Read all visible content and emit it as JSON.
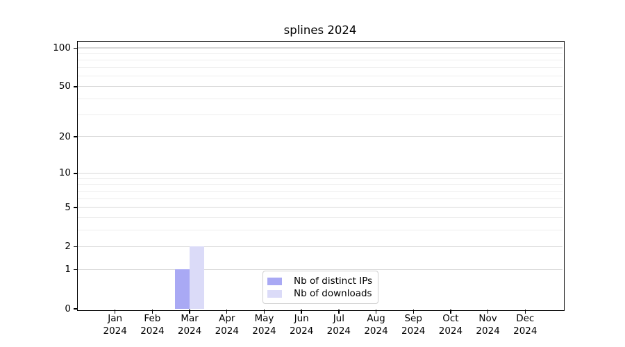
{
  "chart_data": {
    "type": "bar",
    "title": "splines 2024",
    "x_tick_months": [
      "Jan",
      "Feb",
      "Mar",
      "Apr",
      "May",
      "Jun",
      "Jul",
      "Aug",
      "Sep",
      "Oct",
      "Nov",
      "Dec"
    ],
    "x_tick_year": "2024",
    "series": [
      {
        "name": "Nb of distinct IPs",
        "color": "#a9a9f4",
        "values": [
          0,
          0,
          1,
          0,
          0,
          0,
          0,
          0,
          0,
          0,
          0,
          0
        ]
      },
      {
        "name": "Nb of downloads",
        "color": "#dbdbf8",
        "values": [
          0,
          0,
          2,
          0,
          0,
          0,
          0,
          0,
          0,
          0,
          0,
          0
        ]
      }
    ],
    "yscale": "log1p",
    "ylim": [
      0,
      113
    ],
    "y_major_ticks": [
      0,
      1,
      2,
      5,
      10,
      20,
      50,
      100
    ],
    "y_minor_gridlines": [
      3,
      4,
      6,
      7,
      8,
      9,
      30,
      40,
      60,
      70,
      80,
      90
    ],
    "grid": "horizontal",
    "legend_position": "lower center",
    "colors": {
      "major_grid": "#d7d7d7",
      "minor_grid": "#ededed",
      "spine": "#000000",
      "text": "#000000",
      "background": "#ffffff"
    }
  }
}
